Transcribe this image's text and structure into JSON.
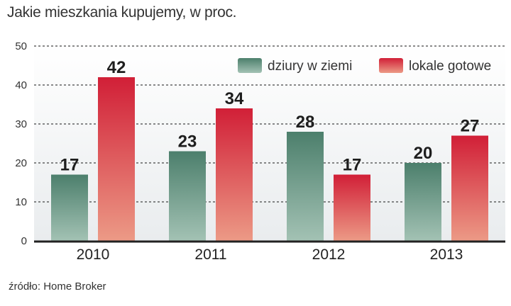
{
  "title": "Jakie mieszkania kupujemy, w proc.",
  "source": "źródło: Home Broker",
  "colors": {
    "series1_top": "#4c7f6c",
    "series1_bottom": "#a3c2b4",
    "series2_top": "#d11f37",
    "series2_bottom": "#ec9a86",
    "grid": "#444444",
    "axis": "#222222",
    "band": "#e9ecee"
  },
  "chart_data": {
    "type": "bar",
    "title": "Jakie mieszkania kupujemy, w proc.",
    "categories": [
      "2010",
      "2011",
      "2012",
      "2013"
    ],
    "series": [
      {
        "name": "dziury w ziemi",
        "values": [
          17,
          23,
          28,
          20
        ]
      },
      {
        "name": "lokale gotowe",
        "values": [
          42,
          34,
          17,
          27
        ]
      }
    ],
    "ylim": [
      0,
      50
    ],
    "yticks": [
      "0",
      "10",
      "20",
      "30",
      "40",
      "50"
    ],
    "xlabel": "",
    "ylabel": "",
    "grid": true,
    "legend_position": "top-right"
  }
}
